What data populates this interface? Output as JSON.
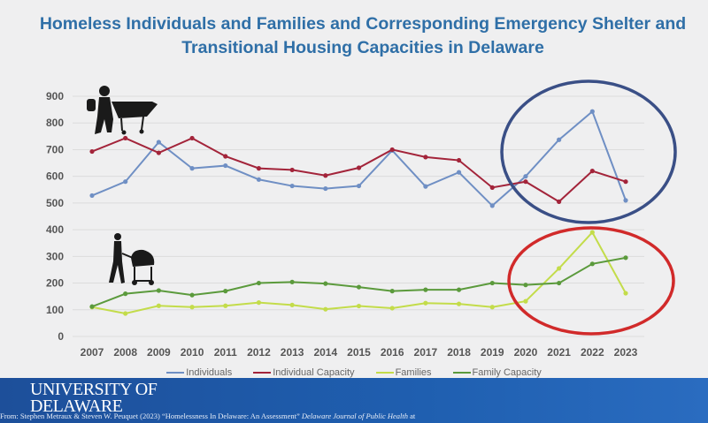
{
  "chart_data": {
    "type": "line",
    "title": "Homeless Individuals and Families and Corresponding Emergency Shelter and Transitional Housing Capacities in Delaware",
    "title_lines": [
      "Homeless Individuals and Families and Corresponding Emergency Shelter and",
      "Transitional Housing Capacities in Delaware"
    ],
    "x": [
      "2007",
      "2008",
      "2009",
      "2010",
      "2011",
      "2012",
      "2013",
      "2014",
      "2015",
      "2016",
      "2017",
      "2018",
      "2019",
      "2020",
      "2021",
      "2022",
      "2023"
    ],
    "yticks": [
      "0",
      "100",
      "200",
      "300",
      "400",
      "500",
      "600",
      "700",
      "800",
      "900"
    ],
    "ylim": [
      0,
      900
    ],
    "grid": true,
    "legend_position": "bottom",
    "series": [
      {
        "name": "Individuals",
        "color": "#6f8fc4",
        "values": [
          528,
          580,
          728,
          630,
          640,
          588,
          564,
          554,
          564,
          697,
          562,
          615,
          490,
          600,
          737,
          843,
          510
        ]
      },
      {
        "name": "Individual Capacity",
        "color": "#a3243a",
        "values": [
          693,
          743,
          688,
          743,
          675,
          630,
          624,
          603,
          632,
          700,
          672,
          660,
          558,
          580,
          505,
          620,
          580
        ]
      },
      {
        "name": "Families",
        "color": "#c3dc4a",
        "values": [
          110,
          86,
          115,
          110,
          115,
          127,
          118,
          102,
          114,
          106,
          125,
          122,
          110,
          132,
          255,
          390,
          162
        ]
      },
      {
        "name": "Family Capacity",
        "color": "#5b9a3c",
        "values": [
          112,
          160,
          172,
          155,
          170,
          200,
          204,
          198,
          185,
          170,
          175,
          175,
          200,
          193,
          200,
          272,
          295
        ]
      }
    ],
    "annotations": [
      {
        "shape": "ellipse",
        "color": "#3a4f86",
        "around": "Individuals 2020-2023"
      },
      {
        "shape": "ellipse",
        "color": "#d12a2a",
        "around": "Families 2020-2023"
      }
    ]
  },
  "footer": {
    "logo_line1": "UNIVERSITY OF",
    "logo_line2": "DELAWARE",
    "citation_prefix": "From: Stephen Metraux & Steven W. Peuquet (2023) “Homelessness In Delaware: An Assessment”",
    "citation_journal": "Delaware Journal of Public Health",
    "citation_suffix": "at",
    "bg_color": "#1f5aa6"
  }
}
